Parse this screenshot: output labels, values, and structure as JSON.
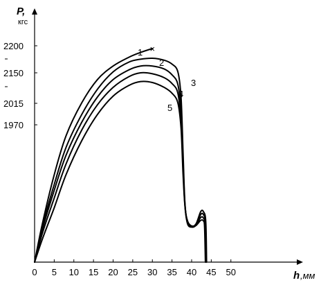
{
  "chart_data": {
    "type": "line",
    "ylabel": "P,",
    "ylabel_unit": "кгс",
    "xlabel": "h",
    "xlabel_unit": ",мм",
    "xlim": [
      0,
      52
    ],
    "x_ticks": [
      0,
      5,
      10,
      15,
      20,
      25,
      30,
      35,
      40,
      45,
      50
    ],
    "y_tick_labels": [
      {
        "value": 2200,
        "label": "2200"
      },
      {
        "value": 2150,
        "label": "2150"
      },
      {
        "value": 2015,
        "label": "2015"
      },
      {
        "value": 1970,
        "label": "1970"
      }
    ],
    "dash_marks": [
      2175,
      2120
    ],
    "grid": false,
    "series": [
      {
        "label": "1",
        "end_marker": "×",
        "points": [
          [
            0,
            0
          ],
          [
            2,
            400
          ],
          [
            5,
            900
          ],
          [
            8,
            1300
          ],
          [
            12,
            1640
          ],
          [
            16,
            1880
          ],
          [
            20,
            2020
          ],
          [
            24,
            2110
          ],
          [
            27,
            2160
          ],
          [
            30,
            2200
          ]
        ]
      },
      {
        "label": "2",
        "points": [
          [
            0,
            0
          ],
          [
            2,
            370
          ],
          [
            5,
            800
          ],
          [
            8,
            1180
          ],
          [
            12,
            1520
          ],
          [
            16,
            1780
          ],
          [
            20,
            1960
          ],
          [
            24,
            2060
          ],
          [
            27,
            2090
          ],
          [
            30,
            2100
          ],
          [
            33,
            2080
          ],
          [
            35,
            2040
          ],
          [
            36.5,
            1960
          ],
          [
            37.3,
            1700
          ],
          [
            37.8,
            1150
          ],
          [
            38.3,
            600
          ],
          [
            39,
            420
          ],
          [
            40.2,
            370
          ],
          [
            41.2,
            400
          ],
          [
            42.3,
            520
          ],
          [
            43,
            520
          ],
          [
            43.6,
            420
          ],
          [
            43.8,
            0
          ]
        ]
      },
      {
        "label": "3",
        "points": [
          [
            0,
            0
          ],
          [
            2,
            340
          ],
          [
            5,
            740
          ],
          [
            8,
            1100
          ],
          [
            12,
            1440
          ],
          [
            16,
            1700
          ],
          [
            20,
            1880
          ],
          [
            24,
            1980
          ],
          [
            27,
            2020
          ],
          [
            30,
            2020
          ],
          [
            33,
            1990
          ],
          [
            35,
            1930
          ],
          [
            36.5,
            1830
          ],
          [
            37.3,
            1550
          ],
          [
            37.8,
            1050
          ],
          [
            38.3,
            590
          ],
          [
            39,
            410
          ],
          [
            40.2,
            370
          ],
          [
            41.2,
            390
          ],
          [
            42.3,
            490
          ],
          [
            43,
            490
          ],
          [
            43.5,
            400
          ],
          [
            43.7,
            0
          ]
        ]
      },
      {
        "label": "4",
        "points": [
          [
            0,
            0
          ],
          [
            2,
            300
          ],
          [
            5,
            660
          ],
          [
            8,
            1010
          ],
          [
            12,
            1360
          ],
          [
            16,
            1620
          ],
          [
            20,
            1800
          ],
          [
            24,
            1910
          ],
          [
            27,
            1950
          ],
          [
            30,
            1940
          ],
          [
            33,
            1900
          ],
          [
            35,
            1840
          ],
          [
            36.5,
            1740
          ],
          [
            37.3,
            1450
          ],
          [
            37.8,
            980
          ],
          [
            38.3,
            580
          ],
          [
            39,
            400
          ],
          [
            40.2,
            365
          ],
          [
            41.2,
            385
          ],
          [
            42.3,
            460
          ],
          [
            43,
            455
          ],
          [
            43.4,
            380
          ],
          [
            43.6,
            0
          ]
        ]
      },
      {
        "label": "5",
        "points": [
          [
            0,
            0
          ],
          [
            2,
            240
          ],
          [
            5,
            560
          ],
          [
            8,
            900
          ],
          [
            12,
            1250
          ],
          [
            16,
            1520
          ],
          [
            20,
            1710
          ],
          [
            24,
            1820
          ],
          [
            27,
            1860
          ],
          [
            30,
            1850
          ],
          [
            33,
            1800
          ],
          [
            35,
            1740
          ],
          [
            36.5,
            1640
          ],
          [
            37.3,
            1380
          ],
          [
            37.8,
            920
          ],
          [
            38.3,
            570
          ],
          [
            39,
            390
          ],
          [
            40.2,
            360
          ],
          [
            41.2,
            380
          ],
          [
            42.3,
            430
          ],
          [
            43,
            425
          ],
          [
            43.3,
            360
          ],
          [
            43.5,
            0
          ]
        ]
      }
    ]
  }
}
